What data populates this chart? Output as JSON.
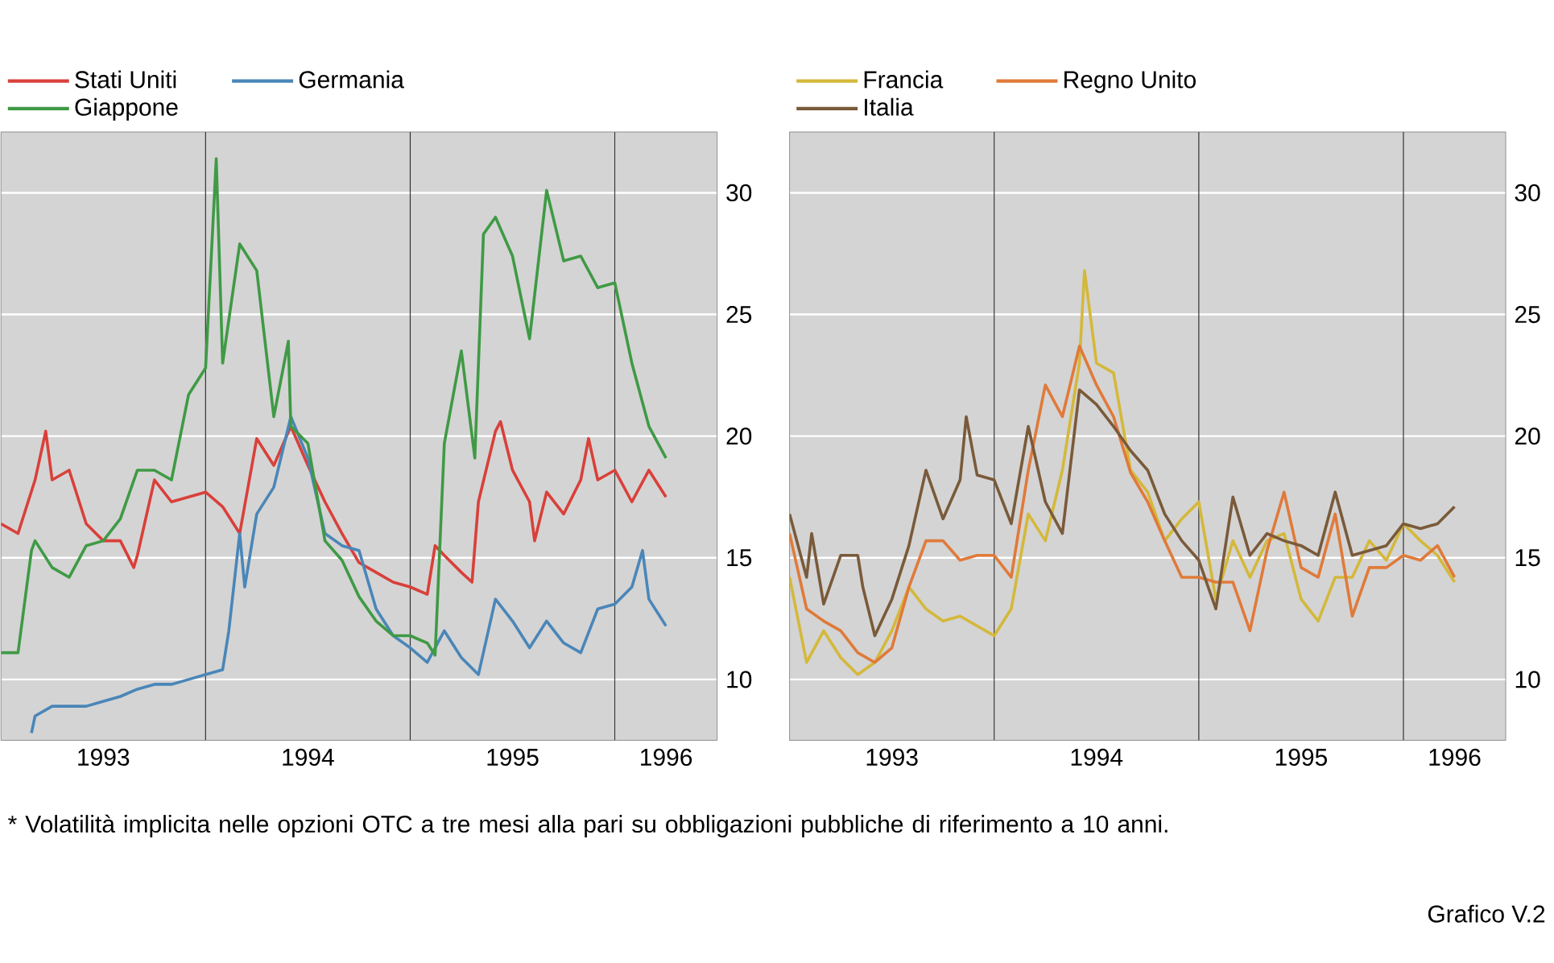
{
  "chart_data": [
    {
      "type": "line",
      "xlim": [
        "1993-01",
        "1996-07"
      ],
      "ylim": [
        7.5,
        32.5
      ],
      "grid": "y",
      "legend": "top",
      "xticks": [
        {
          "value": "1993-07",
          "label": "1993"
        },
        {
          "value": "1994-07",
          "label": "1994"
        },
        {
          "value": "1995-07",
          "label": "1995"
        },
        {
          "value": "1996-04",
          "label": "1996"
        }
      ],
      "yticks": [
        10,
        15,
        20,
        25,
        30
      ],
      "ref_lines": [
        {
          "axis": "x",
          "value": "1994-01",
          "color": "#333333"
        },
        {
          "axis": "x",
          "value": "1995-01",
          "color": "#333333"
        },
        {
          "axis": "x",
          "value": "1996-01",
          "color": "#333333"
        }
      ],
      "series": [
        {
          "name": "Stati Uniti",
          "color": "#d9403a",
          "x": [
            "1993-01",
            "1993-02",
            "1993-03",
            "1993-03-20",
            "1993-04",
            "1993-05",
            "1993-06",
            "1993-07",
            "1993-08",
            "1993-08-25",
            "1993-09",
            "1993-10",
            "1993-11",
            "1993-12",
            "1994-01",
            "1994-02",
            "1994-03",
            "1994-04",
            "1994-05",
            "1994-06",
            "1994-07",
            "1994-08",
            "1994-09",
            "1994-10",
            "1994-11",
            "1994-12",
            "1995-01",
            "1995-02",
            "1995-02-15",
            "1995-03",
            "1995-04",
            "1995-04-20",
            "1995-05",
            "1995-06",
            "1995-06-10",
            "1995-07",
            "1995-08",
            "1995-08-10",
            "1995-09",
            "1995-10",
            "1995-11",
            "1995-11-15",
            "1995-12",
            "1996-01",
            "1996-02",
            "1996-03",
            "1996-04"
          ],
          "values": [
            16.4,
            16.0,
            18.2,
            20.2,
            18.2,
            18.6,
            16.4,
            15.7,
            15.7,
            14.6,
            15.1,
            18.2,
            17.3,
            17.5,
            17.7,
            17.1,
            16.0,
            19.9,
            18.8,
            20.4,
            18.8,
            17.3,
            16.0,
            14.8,
            14.4,
            14.0,
            13.8,
            13.5,
            15.5,
            15.1,
            14.4,
            14.0,
            17.3,
            20.2,
            20.6,
            18.6,
            17.3,
            15.7,
            17.7,
            16.8,
            18.2,
            19.9,
            18.2,
            18.6,
            17.3,
            18.6,
            17.5
          ]
        },
        {
          "name": "Germania",
          "color": "#4a86b8",
          "x": [
            "1993-02-25",
            "1993-03",
            "1993-04",
            "1993-05",
            "1993-06",
            "1993-07",
            "1993-08",
            "1993-09",
            "1993-10",
            "1993-11",
            "1993-12",
            "1994-01",
            "1994-02",
            "1994-02-12",
            "1994-03",
            "1994-03-10",
            "1994-04",
            "1994-05",
            "1994-06",
            "1994-07",
            "1994-08",
            "1994-09",
            "1994-10",
            "1994-11",
            "1994-12",
            "1995-01",
            "1995-02",
            "1995-03",
            "1995-04",
            "1995-05",
            "1995-06",
            "1995-07",
            "1995-08",
            "1995-09",
            "1995-10",
            "1995-11",
            "1995-12",
            "1996-01",
            "1996-02",
            "1996-02-20",
            "1996-03",
            "1996-04"
          ],
          "values": [
            7.8,
            8.5,
            8.9,
            8.9,
            8.9,
            9.1,
            9.3,
            9.6,
            9.8,
            9.8,
            10.0,
            10.2,
            10.4,
            12.0,
            16.0,
            13.8,
            16.8,
            17.9,
            20.8,
            19.1,
            16.0,
            15.5,
            15.3,
            12.9,
            11.8,
            11.3,
            10.7,
            12.0,
            10.9,
            10.2,
            13.3,
            12.4,
            11.3,
            12.4,
            11.5,
            11.1,
            12.9,
            13.1,
            13.8,
            15.3,
            13.3,
            12.2
          ]
        },
        {
          "name": "Giappone",
          "color": "#3f9a45",
          "x": [
            "1993-01",
            "1993-02",
            "1993-02-25",
            "1993-03",
            "1993-04",
            "1993-05",
            "1993-06",
            "1993-07",
            "1993-08",
            "1993-09",
            "1993-10",
            "1993-11",
            "1993-12",
            "1994-01",
            "1994-01-20",
            "1994-02",
            "1994-03",
            "1994-04",
            "1994-05",
            "1994-05-27",
            "1994-06",
            "1994-07",
            "1994-08",
            "1994-09",
            "1994-10",
            "1994-11",
            "1994-12",
            "1995-01",
            "1995-02",
            "1995-02-15",
            "1995-03",
            "1995-04",
            "1995-04-25",
            "1995-05-10",
            "1995-06",
            "1995-07",
            "1995-08",
            "1995-09",
            "1995-10",
            "1995-11",
            "1995-12",
            "1996-01",
            "1996-02",
            "1996-03",
            "1996-04"
          ],
          "values": [
            11.1,
            11.1,
            15.3,
            15.7,
            14.6,
            14.2,
            15.5,
            15.7,
            16.6,
            18.6,
            18.6,
            18.2,
            21.7,
            22.8,
            31.4,
            23.0,
            27.9,
            26.8,
            20.8,
            23.9,
            20.4,
            19.7,
            15.7,
            14.9,
            13.4,
            12.4,
            11.8,
            11.8,
            11.5,
            11.0,
            19.7,
            23.5,
            19.1,
            28.3,
            29.0,
            27.4,
            24.0,
            30.1,
            27.2,
            27.4,
            26.1,
            26.3,
            23.0,
            20.4,
            19.1
          ]
        }
      ]
    },
    {
      "type": "line",
      "xlim": [
        "1993-01",
        "1996-07"
      ],
      "ylim": [
        7.5,
        32.5
      ],
      "grid": "y",
      "legend": "top",
      "xticks": [
        {
          "value": "1993-07",
          "label": "1993"
        },
        {
          "value": "1994-07",
          "label": "1994"
        },
        {
          "value": "1995-07",
          "label": "1995"
        },
        {
          "value": "1996-04",
          "label": "1996"
        }
      ],
      "yticks": [
        10,
        15,
        20,
        25,
        30
      ],
      "ref_lines": [
        {
          "axis": "x",
          "value": "1994-01",
          "color": "#333333"
        },
        {
          "axis": "x",
          "value": "1995-01",
          "color": "#333333"
        },
        {
          "axis": "x",
          "value": "1996-01",
          "color": "#333333"
        }
      ],
      "annotations": [
        "* Volatilità implicita nelle opzioni OTC a tre mesi alla pari su obbligazioni pubbliche di riferimento a 10 anni.",
        "Grafico V.2"
      ],
      "series": [
        {
          "name": "Francia",
          "color": "#d4b83a",
          "x": [
            "1993-01",
            "1993-02",
            "1993-03",
            "1993-04",
            "1993-05",
            "1993-06",
            "1993-07",
            "1993-08",
            "1993-09",
            "1993-10",
            "1993-11",
            "1993-12",
            "1994-01",
            "1994-02",
            "1994-03",
            "1994-04",
            "1994-05",
            "1994-06",
            "1994-06-10",
            "1994-07",
            "1994-08",
            "1994-09",
            "1994-10",
            "1994-11",
            "1994-12",
            "1995-01",
            "1995-02",
            "1995-03",
            "1995-04",
            "1995-05",
            "1995-06",
            "1995-07",
            "1995-08",
            "1995-09",
            "1995-10",
            "1995-11",
            "1995-12",
            "1996-01",
            "1996-02",
            "1996-03",
            "1996-04"
          ],
          "values": [
            14.2,
            10.7,
            12.0,
            10.9,
            10.2,
            10.7,
            12.0,
            13.8,
            12.9,
            12.4,
            12.6,
            12.2,
            11.8,
            12.9,
            16.8,
            15.7,
            18.6,
            23.0,
            26.8,
            23.0,
            22.6,
            18.6,
            17.7,
            15.7,
            16.6,
            17.3,
            13.3,
            15.7,
            14.2,
            15.7,
            16.0,
            13.3,
            12.4,
            14.2,
            14.2,
            15.7,
            14.9,
            16.4,
            15.7,
            15.1,
            14.0
          ]
        },
        {
          "name": "Regno Unito",
          "color": "#e07a3a",
          "x": [
            "1993-01",
            "1993-02",
            "1993-03",
            "1993-04",
            "1993-05",
            "1993-06",
            "1993-07",
            "1993-08",
            "1993-09",
            "1993-10",
            "1993-11",
            "1993-12",
            "1994-01",
            "1994-02",
            "1994-03",
            "1994-04",
            "1994-05",
            "1994-06",
            "1994-07",
            "1994-08",
            "1994-09",
            "1994-10",
            "1994-11",
            "1994-12",
            "1995-01",
            "1995-02",
            "1995-03",
            "1995-04",
            "1995-05",
            "1995-06",
            "1995-07",
            "1995-08",
            "1995-09",
            "1995-10",
            "1995-11",
            "1995-12",
            "1996-01",
            "1996-02",
            "1996-03",
            "1996-04"
          ],
          "values": [
            16.0,
            12.9,
            12.4,
            12.0,
            11.1,
            10.7,
            11.3,
            13.8,
            15.7,
            15.7,
            14.9,
            15.1,
            15.1,
            14.2,
            18.6,
            22.1,
            20.8,
            23.7,
            22.1,
            20.8,
            18.5,
            17.3,
            15.7,
            14.2,
            14.2,
            14.0,
            14.0,
            12.0,
            15.3,
            17.7,
            14.6,
            14.2,
            16.8,
            12.6,
            14.6,
            14.6,
            15.1,
            14.9,
            15.5,
            14.2
          ]
        },
        {
          "name": "Italia",
          "color": "#7a5a3a",
          "x": [
            "1993-01",
            "1993-02",
            "1993-02-10",
            "1993-03",
            "1993-04",
            "1993-05",
            "1993-05-10",
            "1993-06",
            "1993-07",
            "1993-08",
            "1993-09",
            "1993-10",
            "1993-11",
            "1993-11-12",
            "1993-12",
            "1994-01",
            "1994-02",
            "1994-03",
            "1994-04",
            "1994-05",
            "1994-06",
            "1994-07",
            "1994-08",
            "1994-09",
            "1994-10",
            "1994-11",
            "1994-12",
            "1995-01",
            "1995-02",
            "1995-03",
            "1995-04",
            "1995-05",
            "1995-06",
            "1995-07",
            "1995-08",
            "1995-09",
            "1995-10",
            "1995-11",
            "1995-12",
            "1996-01",
            "1996-02",
            "1996-03",
            "1996-04"
          ],
          "values": [
            16.8,
            14.2,
            16.0,
            13.1,
            15.1,
            15.1,
            13.8,
            11.8,
            13.3,
            15.5,
            18.6,
            16.6,
            18.2,
            20.8,
            18.4,
            18.2,
            16.4,
            20.4,
            17.3,
            16.0,
            21.9,
            21.3,
            20.4,
            19.4,
            18.6,
            16.8,
            15.7,
            14.9,
            12.9,
            17.5,
            15.1,
            16.0,
            15.7,
            15.5,
            15.1,
            17.7,
            15.1,
            15.3,
            15.5,
            16.4,
            16.2,
            16.4,
            17.1
          ]
        }
      ]
    }
  ]
}
